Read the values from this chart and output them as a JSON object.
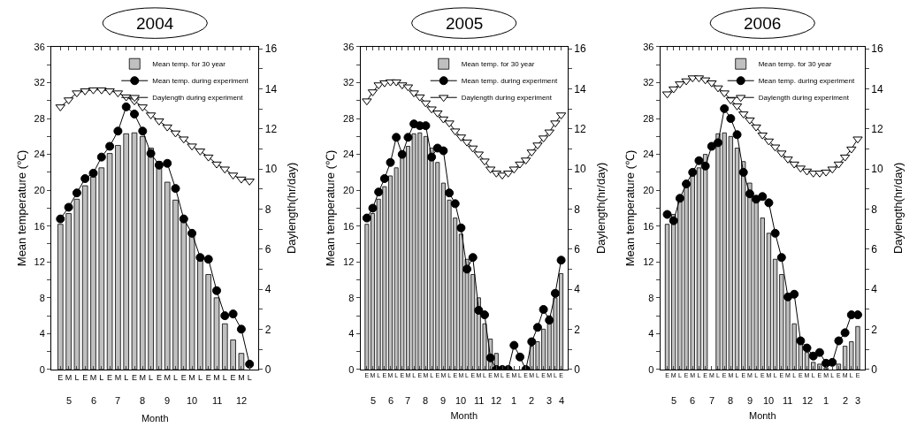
{
  "chart_data": [
    {
      "type": "bar",
      "title": "2004",
      "xlabel": "Month",
      "ylabel": "Mean temperature (℃)",
      "y2label": "Daylength(hr/day)",
      "legend": "top right",
      "grid": false,
      "categories": [
        "E",
        "M",
        "L",
        "E",
        "M",
        "L",
        "E",
        "M",
        "L",
        "E",
        "M",
        "L",
        "E",
        "M",
        "L",
        "E",
        "M",
        "L",
        "E",
        "M",
        "L",
        "E",
        "M",
        "L"
      ],
      "annotations": [
        "5",
        "6",
        "7",
        "8",
        "9",
        "10",
        "11",
        "12"
      ],
      "ylim": [
        0,
        36
      ],
      "yticks": [
        0,
        {
          "value": 2,
          "label": null
        },
        4,
        {
          "value": 6,
          "label": null
        },
        8,
        {
          "value": 10,
          "label": null
        },
        12,
        {
          "value": 14,
          "label": null
        },
        16,
        {
          "value": 18,
          "label": null
        },
        20,
        {
          "value": 22,
          "label": null
        },
        24,
        {
          "value": 26,
          "label": null
        },
        28,
        {
          "value": 30,
          "label": null
        },
        32,
        {
          "value": 34,
          "label": null
        },
        36
      ],
      "y2lim": [
        0,
        16.1
      ],
      "y2ticks": [
        0,
        {
          "value": 1,
          "label": null
        },
        2,
        {
          "value": 3,
          "label": null
        },
        4,
        {
          "value": 5,
          "label": null
        },
        6,
        {
          "value": 7,
          "label": null
        },
        8,
        {
          "value": 9,
          "label": null
        },
        10,
        {
          "value": 11,
          "label": null
        },
        12,
        {
          "value": 13,
          "label": null
        },
        14,
        {
          "value": 15,
          "label": null
        },
        16
      ],
      "series": [
        {
          "name": "Mean temp. for 30 year",
          "color": "#c0c0c0",
          "values": [
            16.2,
            17.4,
            19.0,
            20.5,
            21.5,
            22.5,
            24.1,
            25.0,
            26.3,
            26.4,
            26.0,
            24.7,
            23.2,
            20.9,
            18.9,
            16.9,
            15.1,
            12.3,
            10.6,
            8.0,
            5.1,
            3.3,
            1.8,
            null
          ]
        },
        {
          "name": "Mean temp. during experiment",
          "type": "line",
          "marker": "circle",
          "color": "#000000",
          "values": [
            16.8,
            18.1,
            19.7,
            21.3,
            21.9,
            23.7,
            24.9,
            26.6,
            29.3,
            28.5,
            26.6,
            24.1,
            22.8,
            23.0,
            20.2,
            16.8,
            15.2,
            12.5,
            12.3,
            8.8,
            6.0,
            6.2,
            4.5,
            0.6
          ]
        },
        {
          "name": "Daylength during experiment",
          "type": "line",
          "marker": "triangle",
          "axis": "y2",
          "color": "#000000",
          "values": [
            13.1,
            13.45,
            13.8,
            13.9,
            13.95,
            13.95,
            13.9,
            13.8,
            13.6,
            13.4,
            13.1,
            12.7,
            12.4,
            12.1,
            11.8,
            11.5,
            11.15,
            10.9,
            10.6,
            10.25,
            10.0,
            9.7,
            9.5,
            9.4
          ]
        }
      ]
    },
    {
      "type": "bar",
      "title": "2005",
      "xlabel": "Month",
      "ylabel": "Mean temperature (℃)",
      "y2label": "Daylength(hr/day)",
      "legend": "top right",
      "grid": false,
      "categories": [
        "E",
        "M",
        "L",
        "E",
        "M",
        "L",
        "E",
        "M",
        "L",
        "E",
        "M",
        "L",
        "E",
        "M",
        "L",
        "E",
        "M",
        "L",
        "E",
        "M",
        "L",
        "E",
        "M",
        "L",
        "E",
        "M",
        "L",
        "E",
        "M",
        "L",
        "E",
        "M",
        "L",
        "E"
      ],
      "annotations": [
        "5",
        "6",
        "7",
        "8",
        "9",
        "10",
        "11",
        "12",
        "1",
        "2",
        "3",
        "4"
      ],
      "ylim": [
        0,
        36
      ],
      "yticks": [
        0,
        {
          "value": 2,
          "label": null
        },
        4,
        {
          "value": 6,
          "label": null
        },
        8,
        {
          "value": 10,
          "label": null
        },
        12,
        {
          "value": 14,
          "label": null
        },
        16,
        {
          "value": 18,
          "label": null
        },
        20,
        {
          "value": 22,
          "label": null
        },
        24,
        {
          "value": 26,
          "label": null
        },
        28,
        {
          "value": 30,
          "label": null
        },
        32,
        {
          "value": 34,
          "label": null
        },
        36
      ],
      "y2lim": [
        0,
        16.1
      ],
      "y2ticks": [
        0,
        {
          "value": 1,
          "label": null
        },
        2,
        {
          "value": 3,
          "label": null
        },
        4,
        {
          "value": 5,
          "label": null
        },
        6,
        {
          "value": 7,
          "label": null
        },
        8,
        {
          "value": 9,
          "label": null
        },
        10,
        {
          "value": 11,
          "label": null
        },
        12,
        {
          "value": 13,
          "label": null
        },
        14,
        {
          "value": 15,
          "label": null
        },
        16
      ],
      "series": [
        {
          "name": "Mean temp. for 30 year",
          "color": "#c0c0c0",
          "values": [
            16.2,
            17.4,
            19.0,
            20.4,
            21.6,
            22.5,
            24.0,
            24.9,
            26.3,
            26.4,
            26.0,
            24.7,
            23.1,
            20.8,
            18.9,
            16.9,
            15.1,
            12.3,
            10.6,
            8.0,
            5.1,
            3.4,
            1.8,
            null,
            null,
            null,
            null,
            null,
            2.6,
            3.1,
            4.5,
            6.0,
            8.0,
            10.7
          ]
        },
        {
          "name": "Mean temp. during experiment",
          "type": "line",
          "marker": "circle",
          "color": "#000000",
          "values": [
            16.9,
            18.0,
            19.8,
            21.3,
            23.1,
            25.9,
            24.0,
            25.9,
            27.4,
            27.2,
            27.2,
            23.7,
            24.7,
            24.4,
            19.7,
            18.5,
            15.8,
            11.2,
            12.5,
            6.6,
            6.1,
            1.3,
            0,
            0,
            0,
            2.7,
            1.4,
            0,
            3.1,
            4.7,
            6.7,
            5.5,
            8.5,
            12.2
          ]
        },
        {
          "name": "Daylength during experiment",
          "type": "line",
          "marker": "triangle",
          "axis": "y2",
          "color": "#000000",
          "values": [
            13.4,
            13.85,
            14.2,
            14.3,
            14.35,
            14.35,
            14.2,
            14.1,
            13.8,
            13.6,
            13.3,
            13.0,
            12.8,
            12.5,
            12.3,
            11.9,
            11.6,
            11.35,
            11.05,
            10.75,
            10.4,
            10.0,
            9.8,
            9.7,
            9.8,
            10.0,
            10.25,
            10.45,
            10.85,
            11.2,
            11.55,
            11.85,
            12.3,
            12.7
          ]
        }
      ]
    },
    {
      "type": "bar",
      "title": "2006",
      "xlabel": "Month",
      "ylabel": "Mean temperature (℃)",
      "y2label": "Daylength(hr/day)",
      "legend": "top right",
      "grid": false,
      "categories": [
        "E",
        "M",
        "L",
        "E",
        "M",
        "L",
        "E",
        "M",
        "L",
        "E",
        "M",
        "L",
        "E",
        "M",
        "L",
        "E",
        "M",
        "L",
        "E",
        "M",
        "L",
        "E",
        "M",
        "L",
        "E",
        "M",
        "L",
        "E",
        "M",
        "L",
        "E"
      ],
      "annotations": [
        "5",
        "6",
        "7",
        "8",
        "9",
        "10",
        "11",
        "12",
        "1",
        "2",
        "3"
      ],
      "ylim": [
        0,
        36
      ],
      "yticks": [
        0,
        {
          "value": 2,
          "label": null
        },
        4,
        {
          "value": 6,
          "label": null
        },
        8,
        {
          "value": 10,
          "label": null
        },
        12,
        {
          "value": 14,
          "label": null
        },
        16,
        {
          "value": 18,
          "label": null
        },
        20,
        {
          "value": 22,
          "label": null
        },
        24,
        {
          "value": 26,
          "label": null
        },
        28,
        {
          "value": 30,
          "label": null
        },
        32,
        {
          "value": 34,
          "label": null
        },
        36
      ],
      "y2lim": [
        0,
        16.1
      ],
      "y2ticks": [
        0,
        {
          "value": 1,
          "label": null
        },
        2,
        {
          "value": 3,
          "label": null
        },
        4,
        {
          "value": 5,
          "label": null
        },
        6,
        {
          "value": 7,
          "label": null
        },
        8,
        {
          "value": 9,
          "label": null
        },
        10,
        {
          "value": 11,
          "label": null
        },
        12,
        {
          "value": 13,
          "label": null
        },
        14,
        {
          "value": 15,
          "label": null
        },
        16
      ],
      "series": [
        {
          "name": "Mean temp. for 30 year",
          "color": "#c0c0c0",
          "values": [
            16.2,
            17.3,
            19.0,
            20.4,
            21.6,
            22.5,
            24.0,
            null,
            26.3,
            26.4,
            26.0,
            24.7,
            23.2,
            20.8,
            18.9,
            16.9,
            15.2,
            12.3,
            10.6,
            8.1,
            5.1,
            3.0,
            1.9,
            0.8,
            0.6,
            0.2,
            null,
            0.6,
            2.6,
            3.1,
            4.8
          ]
        },
        {
          "name": "Mean temp. during experiment",
          "type": "line",
          "marker": "circle",
          "color": "#000000",
          "values": [
            17.3,
            16.6,
            19.1,
            20.7,
            22.0,
            23.3,
            22.7,
            24.9,
            25.3,
            29.1,
            28.0,
            26.2,
            22.0,
            19.6,
            19.0,
            19.3,
            18.6,
            15.2,
            12.5,
            8.1,
            8.4,
            3.2,
            2.4,
            1.5,
            1.9,
            0.7,
            0.8,
            3.2,
            4.1,
            6.1,
            6.1
          ]
        },
        {
          "name": "Daylength during experiment",
          "type": "line",
          "marker": "triangle",
          "axis": "y2",
          "color": "#000000",
          "values": [
            13.75,
            14.0,
            14.25,
            14.4,
            14.55,
            14.55,
            14.45,
            14.3,
            14.05,
            13.8,
            13.45,
            13.15,
            12.75,
            12.45,
            12.1,
            11.7,
            11.4,
            11.1,
            10.8,
            10.5,
            10.25,
            10.05,
            9.9,
            9.8,
            9.8,
            9.85,
            10.0,
            10.25,
            10.6,
            11.0,
            11.5
          ]
        }
      ]
    }
  ]
}
